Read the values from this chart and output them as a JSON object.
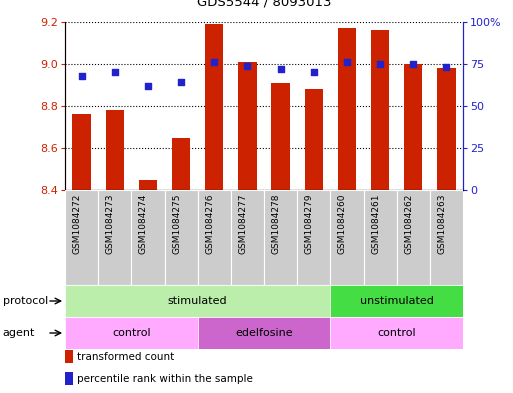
{
  "title": "GDS5544 / 8093013",
  "samples": [
    "GSM1084272",
    "GSM1084273",
    "GSM1084274",
    "GSM1084275",
    "GSM1084276",
    "GSM1084277",
    "GSM1084278",
    "GSM1084279",
    "GSM1084260",
    "GSM1084261",
    "GSM1084262",
    "GSM1084263"
  ],
  "bar_values": [
    8.76,
    8.78,
    8.45,
    8.65,
    9.19,
    9.01,
    8.91,
    8.88,
    9.17,
    9.16,
    9.0,
    8.98
  ],
  "dot_percentiles": [
    68,
    70,
    62,
    64,
    76,
    74,
    72,
    70,
    76,
    75,
    75,
    73
  ],
  "bar_bottom": 8.4,
  "ylim_left": [
    8.4,
    9.2
  ],
  "ylim_right": [
    0,
    100
  ],
  "yticks_left": [
    8.4,
    8.6,
    8.8,
    9.0,
    9.2
  ],
  "yticks_right": [
    0,
    25,
    50,
    75,
    100
  ],
  "ytick_labels_right": [
    "0",
    "25",
    "50",
    "75",
    "100%"
  ],
  "bar_color": "#cc2200",
  "dot_color": "#2222cc",
  "protocol_groups": [
    {
      "label": "stimulated",
      "start": 0,
      "end": 8,
      "color": "#bbeeaa"
    },
    {
      "label": "unstimulated",
      "start": 8,
      "end": 12,
      "color": "#44dd44"
    }
  ],
  "agent_groups": [
    {
      "label": "control",
      "start": 0,
      "end": 4,
      "color": "#ffaaff"
    },
    {
      "label": "edelfosine",
      "start": 4,
      "end": 8,
      "color": "#cc66cc"
    },
    {
      "label": "control",
      "start": 8,
      "end": 12,
      "color": "#ffaaff"
    }
  ],
  "legend_bar_label": "transformed count",
  "legend_dot_label": "percentile rank within the sample",
  "protocol_label": "protocol",
  "agent_label": "agent",
  "bar_width": 0.55
}
